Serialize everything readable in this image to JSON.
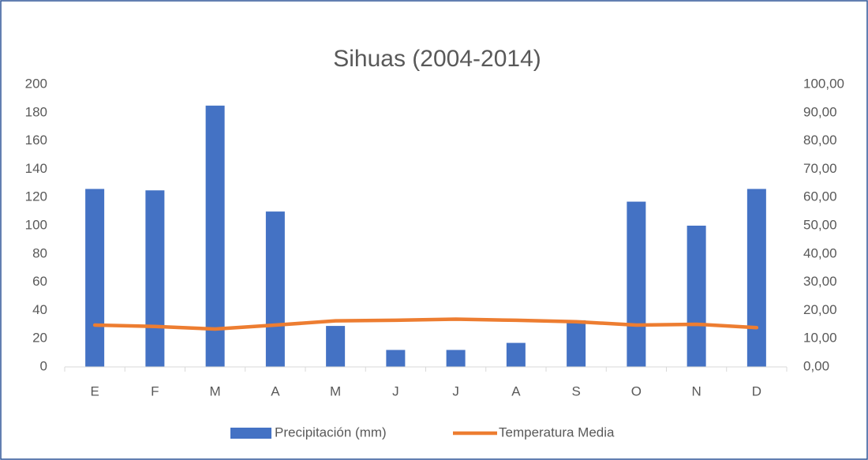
{
  "chart_data": {
    "type": "bar_line",
    "title": "Sihuas (2004-2014)",
    "categories": [
      "E",
      "F",
      "M",
      "A",
      "M",
      "J",
      "J",
      "A",
      "S",
      "O",
      "N",
      "D"
    ],
    "series": [
      {
        "name": "Precipitación (mm)",
        "type": "bar",
        "color": "#4472c4",
        "values": [
          126,
          125,
          185,
          110,
          29,
          12,
          12,
          17,
          33,
          117,
          100,
          126
        ]
      },
      {
        "name": "Temperatura Media",
        "type": "line",
        "axis": "y2",
        "color": "#ed7d31",
        "values": [
          14.8,
          14.3,
          13.4,
          14.8,
          16.3,
          16.5,
          16.9,
          16.5,
          16.0,
          14.8,
          15.1,
          13.9
        ]
      }
    ],
    "ylim": [
      0,
      200
    ],
    "yticks": [
      0,
      20,
      40,
      60,
      80,
      100,
      120,
      140,
      160,
      180,
      200
    ],
    "y2lim": [
      0,
      100
    ],
    "y2ticks": [
      {
        "value": 0,
        "label": "0,00"
      },
      {
        "value": 10,
        "label": "10,00"
      },
      {
        "value": 20,
        "label": "20,00"
      },
      {
        "value": 30,
        "label": "30,00"
      },
      {
        "value": 40,
        "label": "40,00"
      },
      {
        "value": 50,
        "label": "50,00"
      },
      {
        "value": 60,
        "label": "60,00"
      },
      {
        "value": 70,
        "label": "70,00"
      },
      {
        "value": 80,
        "label": "80,00"
      },
      {
        "value": 90,
        "label": "90,00"
      },
      {
        "value": 100,
        "label": "100,00"
      }
    ],
    "grid": false,
    "legend": "bottom"
  }
}
